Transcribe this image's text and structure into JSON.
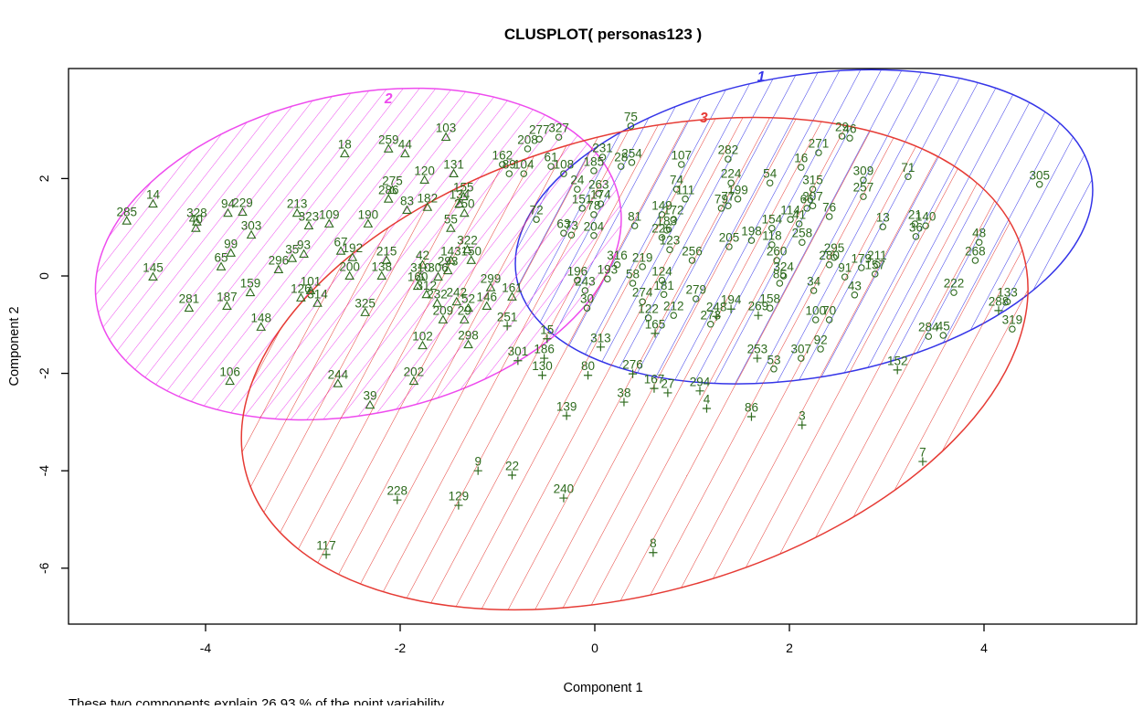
{
  "chart_data": {
    "type": "scatter",
    "title": "CLUSPLOT( personas123 )",
    "xlabel": "Component 1",
    "ylabel": "Component 2",
    "footnote": "These two components explain 26.93 % of the point variability.",
    "xlim": [
      -5.4,
      5.55
    ],
    "ylim": [
      -7.15,
      4.25
    ],
    "xticks": [
      -4,
      -2,
      0,
      2,
      4
    ],
    "yticks": [
      2,
      0,
      -2,
      -4,
      -6
    ],
    "grid": false,
    "legend": "none",
    "point_color": "#2d6a1d",
    "axis_color": "#000000",
    "clusters": [
      {
        "id": "1",
        "marker": "circle",
        "color": "#3535e8",
        "label_pos": [
          1.71,
          4.0
        ],
        "hatch_angle": -52,
        "hatch_spacing": 20,
        "ellipse": {
          "cx": 2.15,
          "cy": 1.01,
          "rx": 3.0,
          "ry": 3.1,
          "rotate": -10
        },
        "points": [
          [
            "75",
            0.37,
            3.08
          ],
          [
            "327",
            -0.37,
            2.85
          ],
          [
            "231",
            0.08,
            2.44
          ],
          [
            "185",
            -0.01,
            2.16
          ],
          [
            "254",
            0.38,
            2.33
          ],
          [
            "28",
            0.27,
            2.25
          ],
          [
            "107",
            0.89,
            2.29
          ],
          [
            "74",
            0.84,
            1.78
          ],
          [
            "111",
            0.93,
            1.58
          ],
          [
            "61",
            -0.45,
            2.25
          ],
          [
            "108",
            -0.32,
            2.1
          ],
          [
            "24",
            -0.18,
            1.78
          ],
          [
            "263",
            0.04,
            1.69
          ],
          [
            "174",
            0.06,
            1.48
          ],
          [
            "151",
            -0.13,
            1.39
          ],
          [
            "78",
            -0.01,
            1.26
          ],
          [
            "149",
            0.69,
            1.26
          ],
          [
            "172",
            0.81,
            1.16
          ],
          [
            "183",
            0.74,
            0.94
          ],
          [
            "226",
            0.69,
            0.79
          ],
          [
            "81",
            0.41,
            1.03
          ],
          [
            "72",
            -0.6,
            1.16
          ],
          [
            "63",
            -0.32,
            0.88
          ],
          [
            "73",
            -0.24,
            0.84
          ],
          [
            "204",
            -0.01,
            0.83
          ],
          [
            "104",
            -0.73,
            2.1
          ],
          [
            "208",
            -0.69,
            2.61
          ],
          [
            "277",
            -0.57,
            2.81
          ],
          [
            "162",
            -0.95,
            2.29
          ],
          [
            "89",
            -0.88,
            2.1
          ],
          [
            "29",
            2.54,
            2.87
          ],
          [
            "46",
            2.62,
            2.83
          ],
          [
            "271",
            2.3,
            2.53
          ],
          [
            "16",
            2.12,
            2.23
          ],
          [
            "282",
            1.37,
            2.4
          ],
          [
            "224",
            1.4,
            1.91
          ],
          [
            "54",
            1.8,
            1.91
          ],
          [
            "41",
            2.1,
            1.07
          ],
          [
            "315",
            2.24,
            1.78
          ],
          [
            "309",
            2.76,
            1.97
          ],
          [
            "257",
            2.76,
            1.63
          ],
          [
            "71",
            3.22,
            2.04
          ],
          [
            "199",
            1.47,
            1.58
          ],
          [
            "66",
            2.18,
            1.39
          ],
          [
            "207",
            2.24,
            1.44
          ],
          [
            "76",
            2.41,
            1.22
          ],
          [
            "114",
            2.01,
            1.16
          ],
          [
            "154",
            1.82,
            0.98
          ],
          [
            "198",
            1.61,
            0.73
          ],
          [
            "118",
            1.82,
            0.64
          ],
          [
            "258",
            2.13,
            0.69
          ],
          [
            "295",
            2.46,
            0.38
          ],
          [
            "260",
            1.87,
            0.32
          ],
          [
            "280",
            2.41,
            0.23
          ],
          [
            "179",
            2.74,
            0.17
          ],
          [
            "211",
            2.9,
            0.23
          ],
          [
            "91",
            2.57,
            -0.02
          ],
          [
            "157",
            2.88,
            0.04
          ],
          [
            "34",
            2.25,
            -0.3
          ],
          [
            "324",
            1.94,
            0.0
          ],
          [
            "85",
            1.9,
            -0.15
          ],
          [
            "43",
            2.67,
            -0.39
          ],
          [
            "13",
            2.96,
            1.01
          ],
          [
            "21",
            3.29,
            1.07
          ],
          [
            "140",
            3.4,
            1.03
          ],
          [
            "36",
            3.3,
            0.81
          ],
          [
            "48",
            3.95,
            0.69
          ],
          [
            "268",
            3.91,
            0.32
          ],
          [
            "305",
            4.57,
            1.88
          ],
          [
            "222",
            3.69,
            -0.34
          ],
          [
            "133",
            4.24,
            -0.53
          ],
          [
            "319",
            4.29,
            -1.09
          ],
          [
            "100",
            2.27,
            -0.9
          ],
          [
            "70",
            2.41,
            -0.9
          ],
          [
            "92",
            2.32,
            -1.5
          ],
          [
            "307",
            2.12,
            -1.69
          ],
          [
            "53",
            1.84,
            -1.91
          ],
          [
            "284",
            3.43,
            -1.24
          ],
          [
            "45",
            3.58,
            -1.22
          ],
          [
            "158",
            1.8,
            -0.66
          ],
          [
            "273",
            1.19,
            -0.99
          ],
          [
            "196",
            -0.18,
            -0.09
          ],
          [
            "193",
            0.13,
            -0.06
          ],
          [
            "58",
            0.39,
            -0.15
          ],
          [
            "124",
            0.69,
            -0.09
          ],
          [
            "181",
            0.71,
            -0.38
          ],
          [
            "274",
            0.49,
            -0.53
          ],
          [
            "279",
            1.04,
            -0.47
          ],
          [
            "122",
            0.55,
            -0.86
          ],
          [
            "212",
            0.81,
            -0.81
          ],
          [
            "243",
            -0.1,
            -0.3
          ],
          [
            "30",
            -0.08,
            -0.66
          ],
          [
            "316",
            0.23,
            0.23
          ],
          [
            "219",
            0.49,
            0.19
          ],
          [
            "123",
            0.77,
            0.54
          ],
          [
            "256",
            1.0,
            0.32
          ],
          [
            "79",
            1.3,
            1.39
          ],
          [
            "77",
            1.37,
            1.44
          ],
          [
            "205",
            1.38,
            0.6
          ]
        ]
      },
      {
        "id": "2",
        "marker": "triangle",
        "color": "#ee4bee",
        "label_pos": [
          -2.12,
          3.55
        ],
        "hatch_angle": -40,
        "hatch_spacing": 14,
        "ellipse": {
          "cx": -2.43,
          "cy": 0.45,
          "rx": 2.74,
          "ry": 3.28,
          "rotate": -12
        },
        "points": [
          [
            "285",
            -4.81,
            1.13
          ],
          [
            "14",
            -4.54,
            1.48
          ],
          [
            "328",
            -4.09,
            1.11
          ],
          [
            "40",
            -4.1,
            0.98
          ],
          [
            "94",
            -3.77,
            1.29
          ],
          [
            "229",
            -3.62,
            1.31
          ],
          [
            "213",
            -3.06,
            1.29
          ],
          [
            "323",
            -2.94,
            1.03
          ],
          [
            "109",
            -2.73,
            1.07
          ],
          [
            "303",
            -3.53,
            0.84
          ],
          [
            "99",
            -3.74,
            0.47
          ],
          [
            "65",
            -3.84,
            0.19
          ],
          [
            "145",
            -4.54,
            -0.02
          ],
          [
            "281",
            -4.17,
            -0.66
          ],
          [
            "187",
            -3.78,
            -0.62
          ],
          [
            "159",
            -3.54,
            -0.34
          ],
          [
            "148",
            -3.43,
            -1.05
          ],
          [
            "106",
            -3.75,
            -2.16
          ],
          [
            "101",
            -2.92,
            -0.3
          ],
          [
            "314",
            -2.85,
            -0.56
          ],
          [
            "93",
            -2.99,
            0.45
          ],
          [
            "35",
            -3.11,
            0.36
          ],
          [
            "296",
            -3.25,
            0.13
          ],
          [
            "126",
            -3.02,
            -0.45
          ],
          [
            "18",
            -2.57,
            2.51
          ],
          [
            "259",
            -2.12,
            2.61
          ],
          [
            "44",
            -1.95,
            2.51
          ],
          [
            "103",
            -1.53,
            2.85
          ],
          [
            "67",
            -2.61,
            0.51
          ],
          [
            "192",
            -2.49,
            0.38
          ],
          [
            "215",
            -2.14,
            0.32
          ],
          [
            "190",
            -2.33,
            1.07
          ],
          [
            "325",
            -2.36,
            -0.75
          ],
          [
            "244",
            -2.64,
            -2.21
          ],
          [
            "39",
            -2.31,
            -2.65
          ],
          [
            "200",
            -2.52,
            0.0
          ],
          [
            "138",
            -2.19,
            0.0
          ],
          [
            "310",
            -1.79,
            -0.02
          ],
          [
            "306",
            -1.61,
            -0.02
          ],
          [
            "293",
            -1.51,
            0.11
          ],
          [
            "299",
            -1.07,
            -0.24
          ],
          [
            "160",
            -1.82,
            -0.21
          ],
          [
            "312",
            -1.73,
            -0.38
          ],
          [
            "232",
            -1.62,
            -0.56
          ],
          [
            "242",
            -1.42,
            -0.53
          ],
          [
            "52",
            -1.3,
            -0.66
          ],
          [
            "146",
            -1.11,
            -0.62
          ],
          [
            "209",
            -1.56,
            -0.9
          ],
          [
            "29",
            -1.34,
            -0.9
          ],
          [
            "161",
            -0.85,
            -0.43
          ],
          [
            "102",
            -1.77,
            -1.43
          ],
          [
            "298",
            -1.3,
            -1.41
          ],
          [
            "202",
            -1.86,
            -2.16
          ],
          [
            "275",
            -2.08,
            1.76
          ],
          [
            "286",
            -2.12,
            1.58
          ],
          [
            "83",
            -1.93,
            1.35
          ],
          [
            "182",
            -1.72,
            1.41
          ],
          [
            "134",
            -1.39,
            1.48
          ],
          [
            "155",
            -1.35,
            1.63
          ],
          [
            "250",
            -1.34,
            1.29
          ],
          [
            "55",
            -1.48,
            0.98
          ],
          [
            "322",
            -1.31,
            0.54
          ],
          [
            "42",
            -1.77,
            0.23
          ],
          [
            "143",
            -1.48,
            0.32
          ],
          [
            "150",
            -1.27,
            0.32
          ],
          [
            "120",
            -1.75,
            1.97
          ],
          [
            "131",
            -1.45,
            2.1
          ]
        ]
      },
      {
        "id": "3",
        "marker": "plus",
        "color": "#e63b35",
        "label_pos": [
          1.12,
          3.15
        ],
        "hatch_angle": -46,
        "hatch_spacing": 26,
        "ellipse": {
          "cx": 0.41,
          "cy": -1.8,
          "rx": 4.15,
          "ry": 4.69,
          "rotate": -16
        },
        "points": [
          [
            "15",
            -0.49,
            -1.29
          ],
          [
            "301",
            -0.79,
            -1.74
          ],
          [
            "186",
            -0.52,
            -1.69
          ],
          [
            "130",
            -0.54,
            -2.04
          ],
          [
            "80",
            -0.07,
            -2.04
          ],
          [
            "276",
            0.39,
            -2.01
          ],
          [
            "167",
            0.61,
            -2.31
          ],
          [
            "27",
            0.75,
            -2.4
          ],
          [
            "38",
            0.3,
            -2.59
          ],
          [
            "139",
            -0.29,
            -2.87
          ],
          [
            "294",
            1.08,
            -2.36
          ],
          [
            "4",
            1.15,
            -2.72
          ],
          [
            "86",
            1.61,
            -2.89
          ],
          [
            "3",
            2.13,
            -3.06
          ],
          [
            "253",
            1.67,
            -1.69
          ],
          [
            "269",
            1.68,
            -0.81
          ],
          [
            "194",
            1.4,
            -0.68
          ],
          [
            "248",
            1.25,
            -0.83
          ],
          [
            "165",
            0.62,
            -1.18
          ],
          [
            "313",
            0.06,
            -1.46
          ],
          [
            "251",
            -0.9,
            -1.03
          ],
          [
            "152",
            3.11,
            -1.93
          ],
          [
            "288",
            4.15,
            -0.71
          ],
          [
            "7",
            3.37,
            -3.81
          ],
          [
            "9",
            -1.2,
            -4.0
          ],
          [
            "22",
            -0.85,
            -4.09
          ],
          [
            "228",
            -2.03,
            -4.6
          ],
          [
            "129",
            -1.4,
            -4.71
          ],
          [
            "240",
            -0.32,
            -4.56
          ],
          [
            "117",
            -2.76,
            -5.72
          ],
          [
            "8",
            0.6,
            -5.68
          ]
        ]
      }
    ]
  }
}
